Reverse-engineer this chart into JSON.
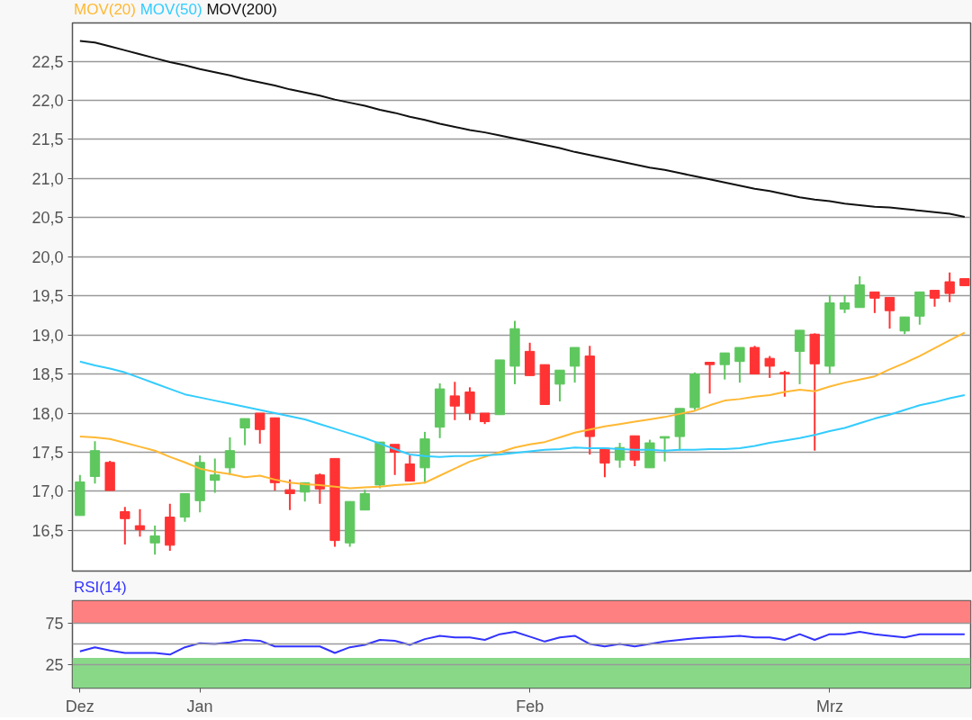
{
  "chart_data": [
    {
      "type": "candlestick",
      "categories": [
        null,
        null,
        null,
        null,
        null,
        null,
        null,
        null,
        null,
        null,
        null,
        null,
        null,
        null,
        null,
        null,
        null,
        null,
        null,
        null,
        null,
        null,
        null,
        null,
        null,
        null,
        null,
        null,
        null,
        null,
        null,
        null,
        null,
        null,
        null,
        null,
        null,
        null,
        null,
        null,
        null,
        null,
        null,
        null,
        null,
        null,
        null,
        null,
        null,
        null,
        null,
        null,
        null,
        null,
        null,
        null,
        null,
        null,
        null,
        null
      ],
      "ohlc": [
        [
          16.69,
          17.21,
          16.69,
          17.12
        ],
        [
          17.19,
          17.64,
          17.1,
          17.52
        ],
        [
          17.37,
          17.39,
          17.01,
          17.01
        ],
        [
          16.74,
          16.8,
          16.32,
          16.65
        ],
        [
          16.56,
          16.77,
          16.42,
          16.51
        ],
        [
          16.34,
          16.56,
          16.19,
          16.43
        ],
        [
          16.67,
          16.84,
          16.24,
          16.31
        ],
        [
          16.67,
          16.97,
          16.61,
          16.97
        ],
        [
          16.88,
          17.46,
          16.73,
          17.37
        ],
        [
          17.14,
          17.42,
          16.98,
          17.21
        ],
        [
          17.3,
          17.69,
          17.21,
          17.52
        ],
        [
          17.81,
          17.93,
          17.59,
          17.93
        ],
        [
          18.0,
          18.0,
          17.61,
          17.79
        ],
        [
          17.94,
          17.94,
          17.01,
          17.11
        ],
        [
          17.02,
          17.15,
          16.76,
          16.97
        ],
        [
          16.99,
          17.11,
          16.87,
          17.11
        ],
        [
          17.21,
          17.23,
          16.84,
          17.03
        ],
        [
          17.42,
          17.42,
          16.29,
          16.37
        ],
        [
          16.34,
          16.87,
          16.29,
          16.87
        ],
        [
          16.76,
          17.02,
          16.76,
          16.97
        ],
        [
          17.08,
          17.63,
          17.04,
          17.63
        ],
        [
          17.6,
          17.6,
          17.21,
          17.5
        ],
        [
          17.35,
          17.46,
          17.13,
          17.13
        ],
        [
          17.3,
          17.76,
          17.1,
          17.67
        ],
        [
          17.82,
          18.38,
          17.68,
          18.31
        ],
        [
          18.22,
          18.4,
          17.91,
          18.09
        ],
        [
          18.27,
          18.33,
          17.91,
          18.0
        ],
        [
          18.0,
          18.0,
          17.86,
          17.89
        ],
        [
          17.98,
          18.68,
          17.98,
          18.68
        ],
        [
          18.6,
          19.18,
          18.37,
          19.08
        ],
        [
          18.79,
          18.9,
          18.48,
          18.48
        ],
        [
          18.62,
          18.62,
          18.11,
          18.11
        ],
        [
          18.37,
          18.55,
          18.15,
          18.55
        ],
        [
          18.6,
          18.84,
          18.39,
          18.84
        ],
        [
          18.73,
          18.86,
          17.47,
          17.7
        ],
        [
          17.55,
          17.55,
          17.18,
          17.36
        ],
        [
          17.4,
          17.62,
          17.3,
          17.56
        ],
        [
          17.71,
          17.71,
          17.32,
          17.4
        ],
        [
          17.3,
          17.66,
          17.3,
          17.62
        ],
        [
          17.68,
          17.7,
          17.38,
          17.7
        ],
        [
          17.7,
          18.06,
          17.52,
          18.06
        ],
        [
          18.07,
          18.52,
          18.04,
          18.5
        ],
        [
          18.65,
          18.65,
          18.25,
          18.62
        ],
        [
          18.62,
          18.77,
          18.43,
          18.77
        ],
        [
          18.66,
          18.84,
          18.39,
          18.84
        ],
        [
          18.84,
          18.86,
          18.5,
          18.5
        ],
        [
          18.7,
          18.73,
          18.45,
          18.6
        ],
        [
          18.52,
          18.54,
          18.21,
          18.5
        ],
        [
          18.79,
          19.06,
          18.37,
          19.06
        ],
        [
          19.01,
          19.02,
          17.52,
          18.63
        ],
        [
          18.6,
          19.51,
          18.5,
          19.41
        ],
        [
          19.33,
          19.51,
          19.28,
          19.41
        ],
        [
          19.35,
          19.75,
          19.35,
          19.64
        ],
        [
          19.55,
          19.55,
          19.28,
          19.47
        ],
        [
          19.48,
          19.48,
          19.08,
          19.31
        ],
        [
          19.05,
          19.23,
          19.01,
          19.23
        ],
        [
          19.24,
          19.55,
          19.13,
          19.55
        ],
        [
          19.57,
          19.57,
          19.36,
          19.47
        ],
        [
          19.68,
          19.8,
          19.42,
          19.53
        ],
        [
          19.72,
          19.72,
          19.63,
          19.63
        ]
      ],
      "colors": [
        "#5ec75e",
        "#5ec75e",
        "#ff3333",
        "#ff3333",
        "#ff3333",
        "#5ec75e",
        "#ff3333",
        "#5ec75e",
        "#5ec75e",
        "#5ec75e",
        "#5ec75e",
        "#5ec75e",
        "#ff3333",
        "#ff3333",
        "#ff3333",
        "#5ec75e",
        "#ff3333",
        "#ff3333",
        "#5ec75e",
        "#5ec75e",
        "#5ec75e",
        "#ff3333",
        "#ff3333",
        "#5ec75e",
        "#5ec75e",
        "#ff3333",
        "#ff3333",
        "#ff3333",
        "#5ec75e",
        "#5ec75e",
        "#ff3333",
        "#ff3333",
        "#5ec75e",
        "#5ec75e",
        "#ff3333",
        "#ff3333",
        "#5ec75e",
        "#ff3333",
        "#5ec75e",
        "#5ec75e",
        "#5ec75e",
        "#5ec75e",
        "#ff3333",
        "#5ec75e",
        "#5ec75e",
        "#ff3333",
        "#ff3333",
        "#ff3333",
        "#5ec75e",
        "#ff3333",
        "#5ec75e",
        "#5ec75e",
        "#5ec75e",
        "#ff3333",
        "#ff3333",
        "#5ec75e",
        "#5ec75e",
        "#ff3333",
        "#ff3333",
        "#ff3333"
      ],
      "series": [
        {
          "name": "MOV(20)",
          "type": "line",
          "color": "#ffb833",
          "values": [
            17.7,
            17.69,
            17.67,
            17.62,
            17.57,
            17.52,
            17.44,
            17.37,
            17.29,
            17.25,
            17.22,
            17.18,
            17.2,
            17.15,
            17.11,
            17.09,
            17.08,
            17.06,
            17.04,
            17.05,
            17.06,
            17.08,
            17.09,
            17.11,
            17.2,
            17.29,
            17.38,
            17.44,
            17.5,
            17.56,
            17.6,
            17.63,
            17.69,
            17.75,
            17.79,
            17.83,
            17.86,
            17.89,
            17.92,
            17.95,
            17.99,
            18.03,
            18.1,
            18.16,
            18.18,
            18.21,
            18.23,
            18.27,
            18.3,
            18.28,
            18.34,
            18.39,
            18.43,
            18.47,
            18.56,
            18.64,
            18.73,
            18.83,
            18.93,
            19.03
          ]
        },
        {
          "name": "MOV(50)",
          "type": "line",
          "color": "#33ccff",
          "values": [
            18.66,
            18.61,
            18.57,
            18.52,
            18.45,
            18.38,
            18.31,
            18.24,
            18.2,
            18.16,
            18.12,
            18.08,
            18.04,
            18.0,
            17.96,
            17.92,
            17.86,
            17.8,
            17.74,
            17.68,
            17.61,
            17.54,
            17.47,
            17.45,
            17.44,
            17.45,
            17.45,
            17.46,
            17.47,
            17.49,
            17.51,
            17.53,
            17.54,
            17.56,
            17.55,
            17.55,
            17.54,
            17.53,
            17.53,
            17.52,
            17.53,
            17.53,
            17.54,
            17.54,
            17.55,
            17.58,
            17.62,
            17.65,
            17.68,
            17.72,
            17.77,
            17.81,
            17.87,
            17.93,
            17.98,
            18.04,
            18.1,
            18.14,
            18.19,
            18.23
          ]
        },
        {
          "name": "MOV(200)",
          "type": "line",
          "color": "#111111",
          "values": [
            22.76,
            22.74,
            22.69,
            22.64,
            22.59,
            22.54,
            22.49,
            22.45,
            22.4,
            22.36,
            22.32,
            22.27,
            22.23,
            22.19,
            22.14,
            22.1,
            22.06,
            22.01,
            21.97,
            21.93,
            21.88,
            21.84,
            21.79,
            21.75,
            21.7,
            21.66,
            21.62,
            21.59,
            21.55,
            21.51,
            21.47,
            21.43,
            21.39,
            21.34,
            21.3,
            21.26,
            21.22,
            21.18,
            21.14,
            21.11,
            21.07,
            21.03,
            20.99,
            20.95,
            20.91,
            20.87,
            20.84,
            20.8,
            20.76,
            20.73,
            20.71,
            20.68,
            20.66,
            20.64,
            20.63,
            20.61,
            20.59,
            20.57,
            20.55,
            20.51
          ]
        }
      ],
      "ylim": [
        15.98,
        22.99
      ],
      "yticks": [
        {
          "value": 16.5,
          "label": "16,5"
        },
        {
          "value": 17.0,
          "label": "17,0"
        },
        {
          "value": 17.5,
          "label": "17,5"
        },
        {
          "value": 18.0,
          "label": "18,0"
        },
        {
          "value": 18.5,
          "label": "18,5"
        },
        {
          "value": 19.0,
          "label": "19,0"
        },
        {
          "value": 19.5,
          "label": "19,5"
        },
        {
          "value": 20.0,
          "label": "20,0"
        },
        {
          "value": 20.5,
          "label": "20,5"
        },
        {
          "value": 21.0,
          "label": "21,0"
        },
        {
          "value": 21.5,
          "label": "21,5"
        },
        {
          "value": 22.0,
          "label": "22,0"
        },
        {
          "value": 22.5,
          "label": "22,5"
        }
      ],
      "grid": "y",
      "legend": "top left",
      "tick_labels": "y"
    },
    {
      "type": "line",
      "categories": [
        "Dez",
        null,
        null,
        null,
        null,
        null,
        null,
        null,
        "Jan",
        null,
        null,
        null,
        null,
        null,
        null,
        null,
        null,
        null,
        null,
        null,
        null,
        null,
        null,
        null,
        null,
        null,
        null,
        null,
        null,
        null,
        "Feb",
        null,
        null,
        null,
        null,
        null,
        null,
        null,
        null,
        null,
        null,
        null,
        null,
        null,
        null,
        null,
        null,
        null,
        null,
        null,
        "Mrz",
        null,
        null,
        null,
        null,
        null,
        null,
        null,
        null,
        null
      ],
      "series": [
        {
          "name": "RSI(14)",
          "color": "#3333ff",
          "values": [
            41,
            46,
            42,
            39,
            39,
            39,
            37,
            46,
            51,
            50,
            52,
            55,
            54,
            47,
            47,
            47,
            47,
            39,
            46,
            49,
            55,
            54,
            49,
            56,
            60,
            58,
            58,
            55,
            62,
            65,
            59,
            53,
            58,
            60,
            50,
            47,
            50,
            47,
            50,
            53,
            55,
            57,
            58,
            59,
            60,
            58,
            58,
            55,
            62,
            55,
            62,
            62,
            65,
            62,
            60,
            58,
            62,
            62,
            62,
            62
          ]
        }
      ],
      "ylim": [
        -4,
        103
      ],
      "yticks": [
        25,
        75
      ],
      "bands": [
        {
          "axis": "y",
          "from": 75,
          "to": 103,
          "color": "#ff8080"
        },
        {
          "axis": "y",
          "from": -4,
          "to": 33,
          "color": "#88d888"
        }
      ],
      "ref_lines": [
        {
          "axis": "y",
          "value": 50,
          "color": "#999999"
        }
      ],
      "grid": "y",
      "legend": "top left"
    }
  ]
}
